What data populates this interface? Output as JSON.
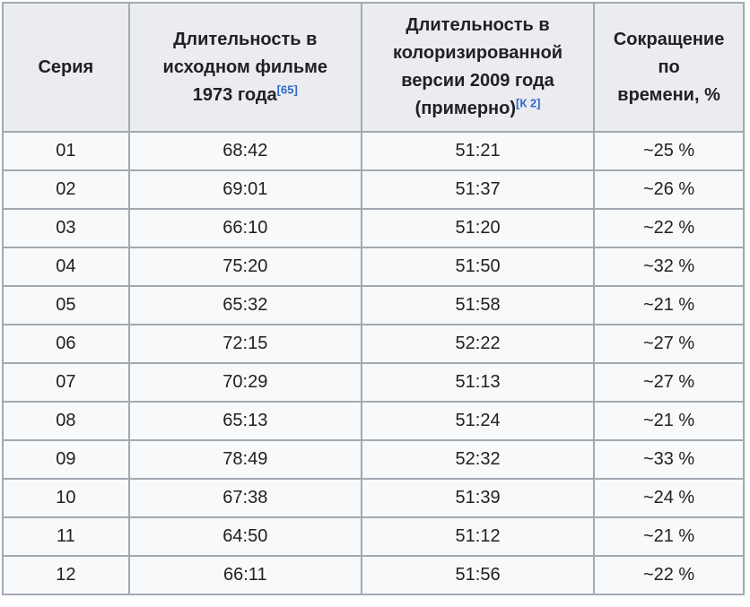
{
  "colors": {
    "header_bg": "#eaecf0",
    "cell_bg": "#f8f9fa",
    "border": "#a2a9b1",
    "text": "#202122",
    "link": "#3366cc"
  },
  "table": {
    "headers": {
      "series": {
        "label": "Серия"
      },
      "original": {
        "lines": [
          "Длительность в",
          "исходном фильме",
          "1973 года"
        ],
        "ref": "[65]"
      },
      "colorized": {
        "lines": [
          "Длительность в",
          "колоризированной",
          "версии 2009 года",
          "(примерно)"
        ],
        "ref": "[К 2]"
      },
      "reduction": {
        "lines": [
          "Сокращение",
          "по",
          "времени, %"
        ]
      }
    },
    "rows": [
      {
        "series": "01",
        "original": "68:42",
        "colorized": "51:21",
        "reduction": "~25 %"
      },
      {
        "series": "02",
        "original": "69:01",
        "colorized": "51:37",
        "reduction": "~26 %"
      },
      {
        "series": "03",
        "original": "66:10",
        "colorized": "51:20",
        "reduction": "~22 %"
      },
      {
        "series": "04",
        "original": "75:20",
        "colorized": "51:50",
        "reduction": "~32 %"
      },
      {
        "series": "05",
        "original": "65:32",
        "colorized": "51:58",
        "reduction": "~21 %"
      },
      {
        "series": "06",
        "original": "72:15",
        "colorized": "52:22",
        "reduction": "~27 %"
      },
      {
        "series": "07",
        "original": "70:29",
        "colorized": "51:13",
        "reduction": "~27 %"
      },
      {
        "series": "08",
        "original": "65:13",
        "colorized": "51:24",
        "reduction": "~21 %"
      },
      {
        "series": "09",
        "original": "78:49",
        "colorized": "52:32",
        "reduction": "~33 %"
      },
      {
        "series": "10",
        "original": "67:38",
        "colorized": "51:39",
        "reduction": "~24 %"
      },
      {
        "series": "11",
        "original": "64:50",
        "colorized": "51:12",
        "reduction": "~21 %"
      },
      {
        "series": "12",
        "original": "66:11",
        "colorized": "51:56",
        "reduction": "~22 %"
      }
    ]
  }
}
